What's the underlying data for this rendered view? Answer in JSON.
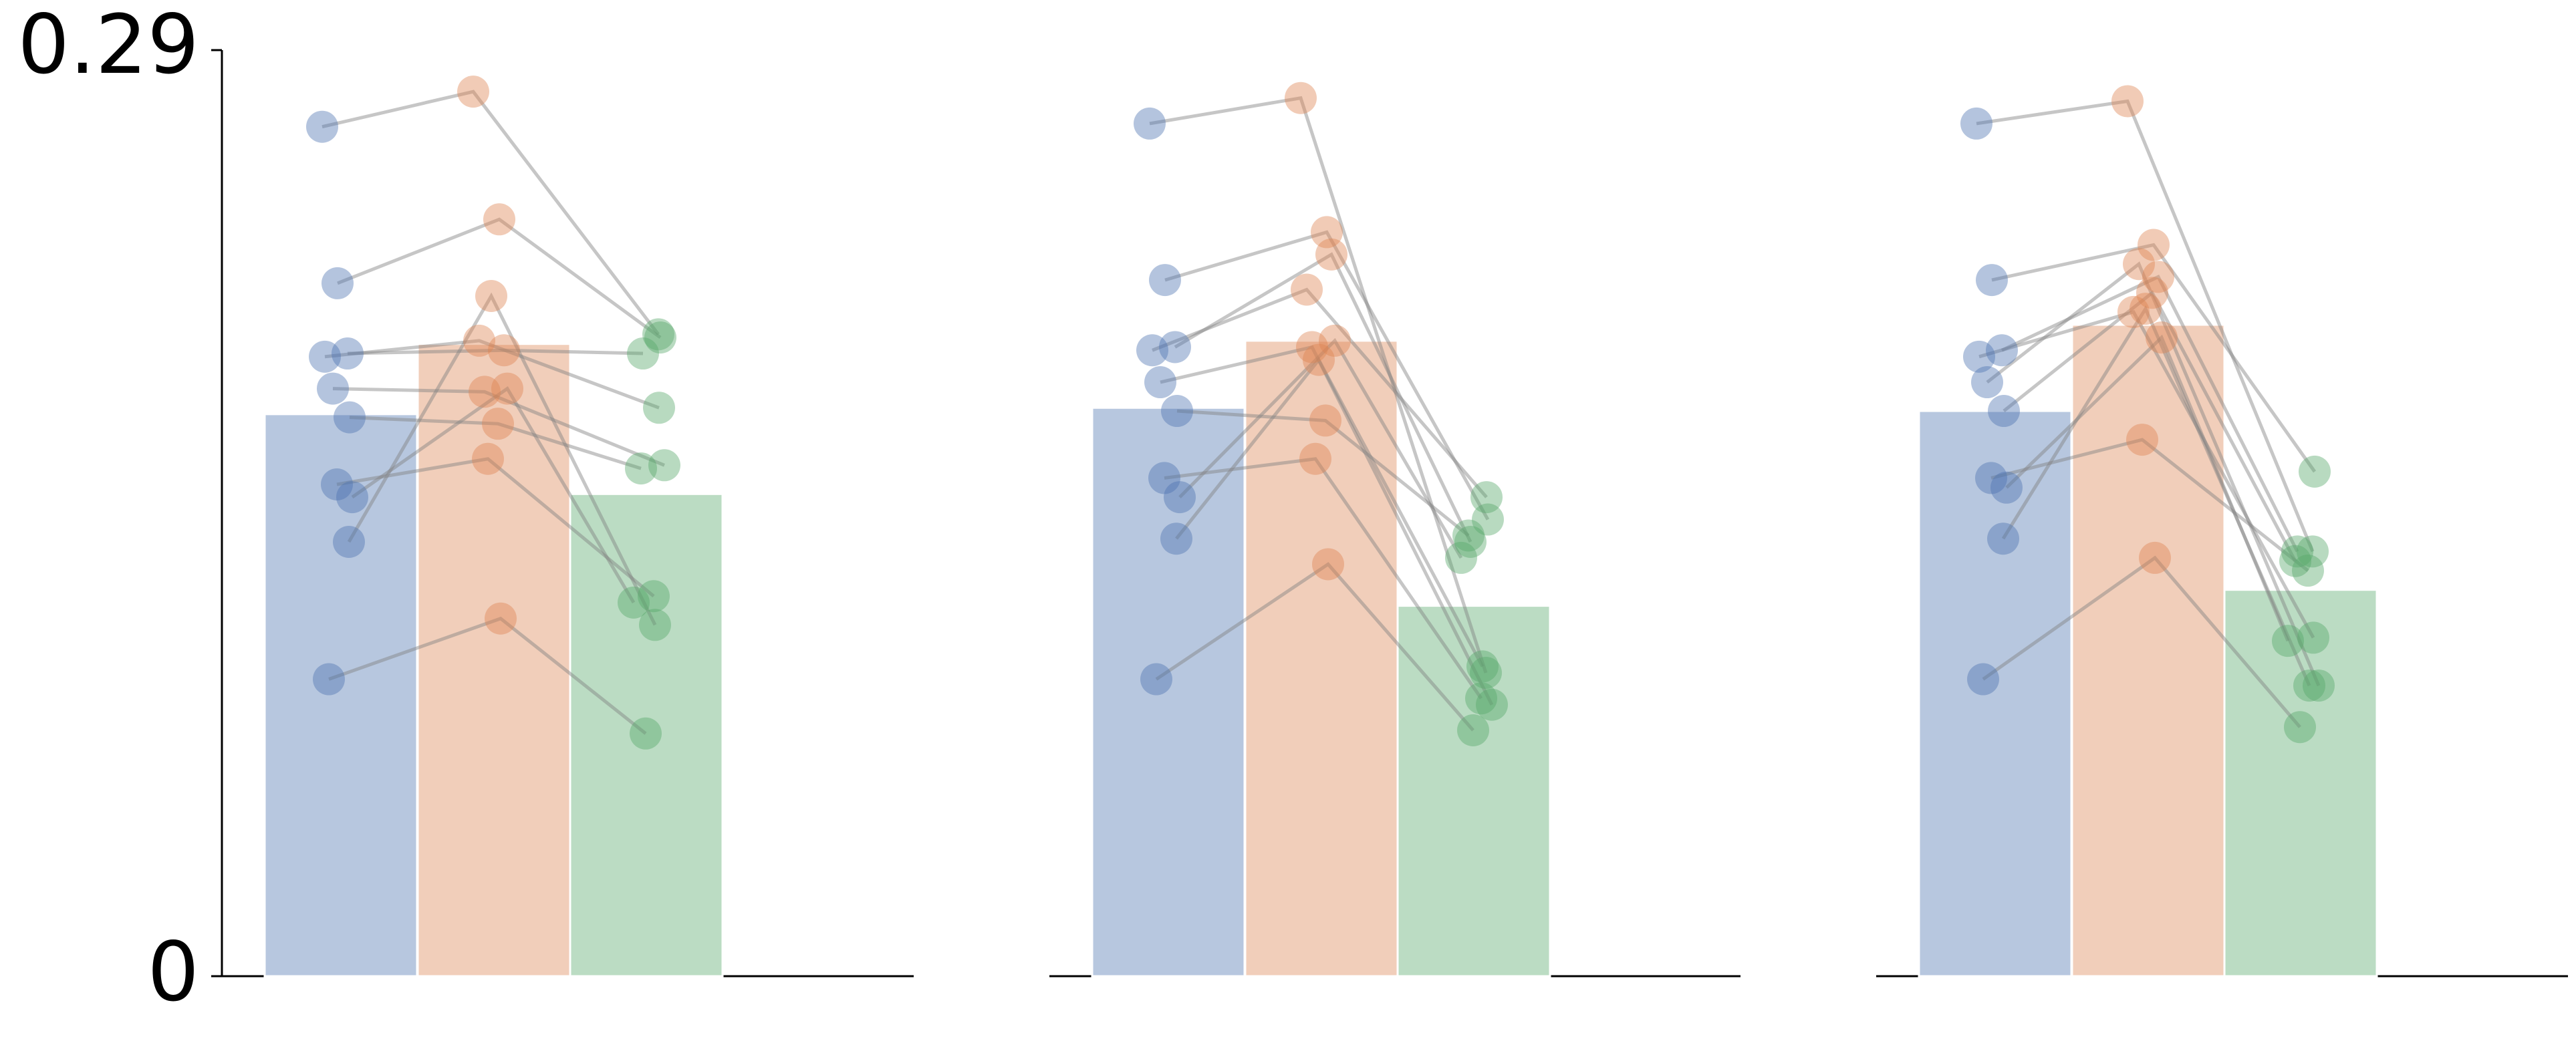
{
  "chart_data": {
    "type": "bar",
    "ylim": [
      0,
      0.29
    ],
    "y_ticks": [
      "0",
      "0.29"
    ],
    "grid": false,
    "legend": "none",
    "colors": {
      "blue": "#4c72b0",
      "orange": "#dd8452",
      "green": "#55a868",
      "line": "#808080",
      "axis": "#000000"
    },
    "panels": [
      {
        "bars": [
          0.176,
          0.198,
          0.151
        ],
        "series": [
          [
            0.266,
            0.277,
            0.201
          ],
          [
            0.217,
            0.237,
            0.2
          ],
          [
            0.195,
            0.196,
            0.195
          ],
          [
            0.194,
            0.199,
            0.178
          ],
          [
            0.184,
            0.183,
            0.16
          ],
          [
            0.175,
            0.173,
            0.159
          ],
          [
            0.154,
            0.162,
            0.119
          ],
          [
            0.15,
            0.184,
            0.117
          ],
          [
            0.136,
            0.213,
            0.11
          ],
          [
            0.093,
            0.112,
            0.076
          ]
        ]
      },
      {
        "bars": [
          0.178,
          0.199,
          0.116
        ],
        "series": [
          [
            0.267,
            0.275,
            0.095
          ],
          [
            0.218,
            0.233,
            0.143
          ],
          [
            0.197,
            0.226,
            0.136
          ],
          [
            0.196,
            0.215,
            0.15
          ],
          [
            0.186,
            0.197,
            0.085
          ],
          [
            0.177,
            0.174,
            0.138
          ],
          [
            0.156,
            0.162,
            0.087
          ],
          [
            0.15,
            0.199,
            0.131
          ],
          [
            0.137,
            0.193,
            0.097
          ],
          [
            0.093,
            0.129,
            0.077
          ]
        ]
      },
      {
        "bars": [
          0.177,
          0.204,
          0.121
        ],
        "series": [
          [
            0.267,
            0.274,
            0.133
          ],
          [
            0.218,
            0.229,
            0.158
          ],
          [
            0.196,
            0.219,
            0.133
          ],
          [
            0.194,
            0.208,
            0.106
          ],
          [
            0.186,
            0.223,
            0.091
          ],
          [
            0.177,
            0.214,
            0.13
          ],
          [
            0.156,
            0.168,
            0.127
          ],
          [
            0.153,
            0.2,
            0.105
          ],
          [
            0.137,
            0.209,
            0.091
          ],
          [
            0.093,
            0.131,
            0.078
          ]
        ]
      }
    ]
  }
}
